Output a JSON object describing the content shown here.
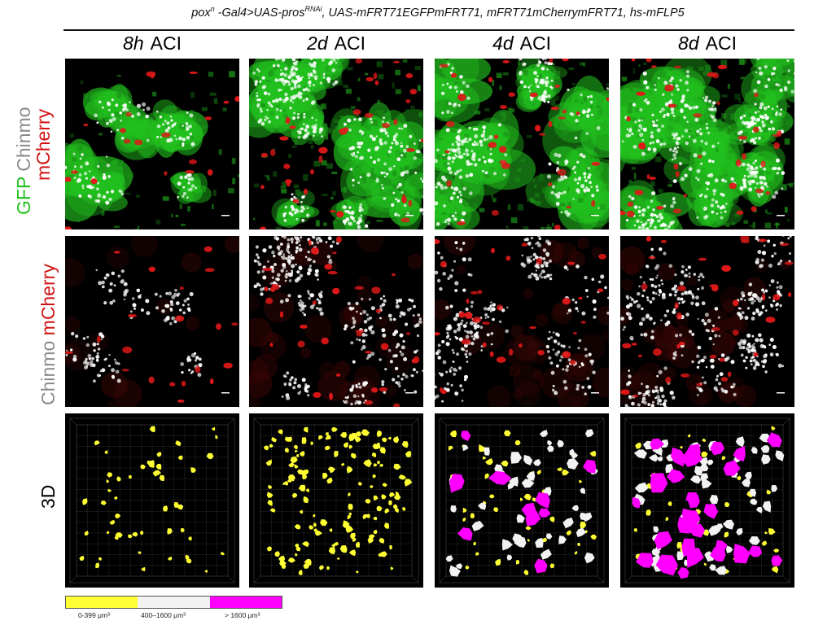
{
  "header": {
    "genotype": "pox^n -Gal4>UAS-pros^RNAi, UAS-mFRT71EGFPmFRT71, mFRT71mCherrymFRT71, hs-mFLP5",
    "genotype_parts": {
      "pox": "pox",
      "pox_sup": "n",
      "gal4": " -Gal4>UAS-pros",
      "rnai_sup": "RNAi",
      "rest": ", UAS-mFRT71EGFPmFRT71, mFRT71mCherrymFRT71, hs-mFLP5"
    }
  },
  "columns": [
    {
      "time": "8h",
      "suffix": "ACI"
    },
    {
      "time": "2d",
      "suffix": "ACI"
    },
    {
      "time": "4d",
      "suffix": "ACI"
    },
    {
      "time": "8d",
      "suffix": "ACI"
    }
  ],
  "rows": {
    "row1": {
      "word1": "GFP",
      "word2": "Chinmo",
      "word3": "mCherry"
    },
    "row2": {
      "word1": "Chinmo",
      "word2": "mCherry"
    },
    "row3": {
      "label": "3D"
    }
  },
  "legend": {
    "items": [
      {
        "label": "0-399 μm³",
        "color": "#ffff33"
      },
      {
        "label": "400–1600 μm³",
        "color": "#f2f2f2"
      },
      {
        "label": "> 1600 μm³",
        "color": "#ff00ff"
      }
    ]
  },
  "colors": {
    "gfp": "#22c01e",
    "chinmo": "#ffffff",
    "mcherry": "#e01818",
    "small_volume": "#ffff33",
    "medium_volume": "#f2f2f2",
    "large_volume": "#ff00ff"
  }
}
